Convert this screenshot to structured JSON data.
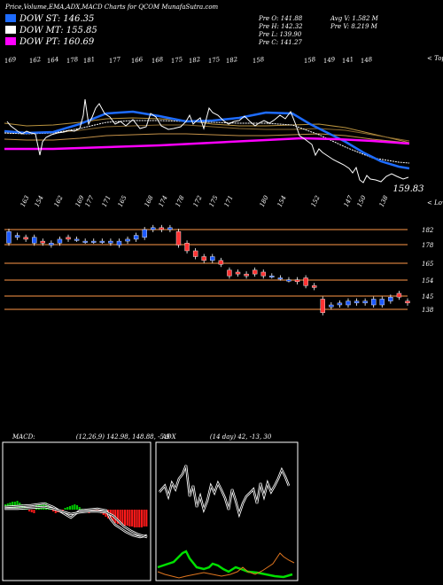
{
  "header": {
    "title": "Price,Volume,EMA,ADX,MACD Charts for QCOM MunafaSutra.com"
  },
  "legend": [
    {
      "label": "DOW ST: 146.35",
      "color": "#1e6cff"
    },
    {
      "label": "DOW MT: 155.85",
      "color": "#ffffff"
    },
    {
      "label": "DOW PT: 160.69",
      "color": "#ff00ff"
    }
  ],
  "ohlc": {
    "open": "Pre O: 141.88",
    "high": "Pre H: 142.32",
    "low": "Pre L: 139.90",
    "close": "Pre C: 141.27",
    "avg_volume": "Avg V: 1.582 M",
    "pre_volume": "Pre V: 8.219 M"
  },
  "upper_chart": {
    "tops_label": "< Tops",
    "lows_label": "< Lows",
    "last_price": "159.83",
    "top_labels": [
      "169",
      "162",
      "164",
      "178",
      "181",
      "177",
      "166",
      "168",
      "175",
      "182",
      "175",
      "182",
      "158",
      "158",
      "149",
      "141",
      "148"
    ],
    "low_labels": [
      "163",
      "154",
      "162",
      "169",
      "177",
      "171",
      "165",
      "168",
      "174",
      "178",
      "172",
      "175",
      "171",
      "180",
      "154",
      "152",
      "147",
      "150",
      "138"
    ],
    "colors": {
      "price": "#ffffff",
      "st": "#1e6cff",
      "mt": "#ffffff",
      "pt": "#ff00ff",
      "lines": "#c8a050"
    }
  },
  "candle_chart": {
    "levels": [
      "182",
      "178",
      "165",
      "154",
      "145",
      "138"
    ],
    "level_color": "#cd7a3a",
    "up_color": "#1e5bff",
    "down_color": "#ff3333"
  },
  "macd": {
    "label": "MACD:",
    "values": "(12,26,9) 142.98, 148.88, -5.9",
    "up_color": "#00c800",
    "down_color": "#ff1a1a"
  },
  "adx": {
    "label": "ADX",
    "values": "(14 day) 42, -13, 30",
    "adx_color": "#ffffff",
    "plus_di_color": "#00e000",
    "minus_di_color": "#e0761f"
  },
  "chart_data": {
    "type": "line",
    "title": "Price,Volume,EMA,ADX,MACD Charts for QCOM MunafaSutra.com",
    "series": [
      {
        "name": "DOW ST",
        "last": 146.35
      },
      {
        "name": "DOW MT",
        "last": 155.85
      },
      {
        "name": "DOW PT",
        "last": 160.69
      }
    ],
    "candles": [
      {
        "o": 175,
        "c": 181
      },
      {
        "o": 178,
        "c": 179
      },
      {
        "o": 178,
        "c": 177
      },
      {
        "o": 175,
        "c": 178
      },
      {
        "o": 176,
        "c": 175
      },
      {
        "o": 174,
        "c": 175
      },
      {
        "o": 175,
        "c": 177
      },
      {
        "o": 178,
        "c": 177
      },
      {
        "o": 177,
        "c": 177
      },
      {
        "o": 176,
        "c": 176
      },
      {
        "o": 176,
        "c": 176
      },
      {
        "o": 176,
        "c": 176
      },
      {
        "o": 175,
        "c": 176
      },
      {
        "o": 174,
        "c": 176
      },
      {
        "o": 176,
        "c": 177
      },
      {
        "o": 177,
        "c": 179
      },
      {
        "o": 178,
        "c": 182
      },
      {
        "o": 182,
        "c": 183
      },
      {
        "o": 183,
        "c": 182
      },
      {
        "o": 182,
        "c": 183
      },
      {
        "o": 181,
        "c": 174
      },
      {
        "o": 175,
        "c": 171
      },
      {
        "o": 171,
        "c": 168
      },
      {
        "o": 168,
        "c": 166
      },
      {
        "o": 166,
        "c": 168
      },
      {
        "o": 166,
        "c": 164
      },
      {
        "o": 161,
        "c": 158
      },
      {
        "o": 160,
        "c": 159
      },
      {
        "o": 159,
        "c": 158
      },
      {
        "o": 161,
        "c": 159
      },
      {
        "o": 160,
        "c": 158
      },
      {
        "o": 158,
        "c": 158
      },
      {
        "o": 157,
        "c": 157
      },
      {
        "o": 156,
        "c": 156
      },
      {
        "o": 156,
        "c": 155
      },
      {
        "o": 157,
        "c": 153
      },
      {
        "o": 153,
        "c": 152
      },
      {
        "o": 146,
        "c": 139
      },
      {
        "o": 142,
        "c": 143
      },
      {
        "o": 143,
        "c": 144
      },
      {
        "o": 143,
        "c": 145
      },
      {
        "o": 144,
        "c": 145
      },
      {
        "o": 144,
        "c": 145
      },
      {
        "o": 143,
        "c": 146
      },
      {
        "o": 143,
        "c": 146
      },
      {
        "o": 145,
        "c": 147
      },
      {
        "o": 149,
        "c": 147
      },
      {
        "o": 145,
        "c": 144
      }
    ],
    "macd": {
      "macd": 142.98,
      "signal": 148.88,
      "histogram": -5.9
    },
    "adx": {
      "period": 14,
      "adx": 42,
      "dm": -13,
      "di": 30
    }
  }
}
